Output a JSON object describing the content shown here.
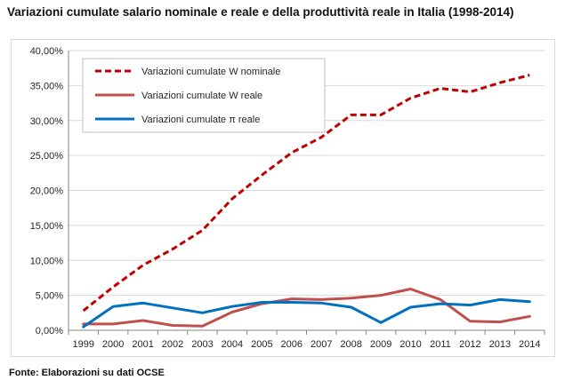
{
  "title": "Variazioni cumulate salario nominale e reale e della produttività reale in Italia (1998-2014)",
  "source": "Fonte: Elaborazioni su dati OCSE",
  "chart_data": {
    "type": "line",
    "title": "Variazioni cumulate salario nominale e reale e della produttività reale in Italia (1998-2014)",
    "xlabel": "",
    "ylabel": "",
    "x": [
      "1999",
      "2000",
      "2001",
      "2002",
      "2003",
      "2004",
      "2005",
      "2006",
      "2007",
      "2008",
      "2009",
      "2010",
      "2011",
      "2012",
      "2013",
      "2014"
    ],
    "ylim": [
      0,
      40
    ],
    "yticks": [
      "0,00%",
      "5,00%",
      "10,00%",
      "15,00%",
      "20,00%",
      "25,00%",
      "30,00%",
      "35,00%",
      "40,00%"
    ],
    "grid": true,
    "legend_position": "top-left",
    "series": [
      {
        "name": "Variazioni cumulate W nominale",
        "color": "#c00000",
        "style": "dashed",
        "values": [
          2.8,
          6.2,
          9.3,
          11.6,
          14.3,
          18.8,
          22.2,
          25.4,
          27.6,
          30.8,
          30.8,
          33.2,
          34.6,
          34.1,
          35.4,
          36.5
        ]
      },
      {
        "name": "Variazioni cumulate W reale",
        "color": "#c0504d",
        "style": "solid",
        "values": [
          0.9,
          0.9,
          1.4,
          0.7,
          0.6,
          2.6,
          3.8,
          4.5,
          4.4,
          4.6,
          5.0,
          5.9,
          4.4,
          1.3,
          1.2,
          2.0
        ]
      },
      {
        "name": "Variazioni cumulate π reale",
        "color": "#0070c0",
        "style": "solid",
        "values": [
          0.5,
          3.4,
          3.9,
          3.2,
          2.5,
          3.4,
          4.0,
          4.0,
          3.9,
          3.3,
          1.1,
          3.3,
          3.8,
          3.6,
          4.4,
          4.1
        ]
      }
    ]
  }
}
